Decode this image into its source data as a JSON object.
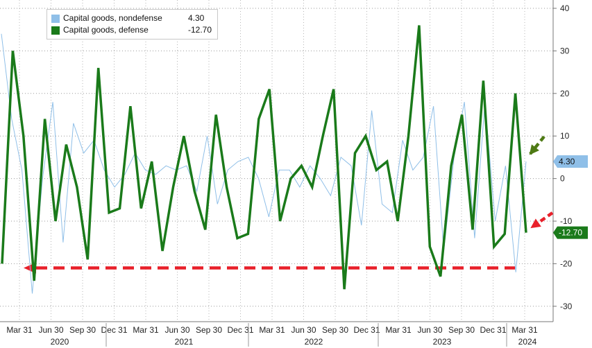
{
  "chart_data": {
    "type": "line",
    "title": "",
    "xlabel": "",
    "ylabel": "",
    "ylim": [
      -33,
      41
    ],
    "y_ticks": [
      40,
      30,
      20,
      10,
      0,
      -10,
      -20,
      -30
    ],
    "x_tick_labels": [
      "Mar 31",
      "Jun 30",
      "Sep 30",
      "Dec 31",
      "Mar 31",
      "Jun 30",
      "Sep 30",
      "Dec 31",
      "Mar 31",
      "Jun 30",
      "Sep 30",
      "Dec 31",
      "Mar 31",
      "Jun 30",
      "Sep 30",
      "Dec 31",
      "Mar 31"
    ],
    "year_labels": [
      "2020",
      "2021",
      "2022",
      "2023",
      "2024"
    ],
    "grid": true,
    "legend_position": "top-left",
    "series": [
      {
        "name": "Capital goods, nondefense",
        "last_value_label": "4.30",
        "color": "#8fbfe8",
        "values": [
          34,
          14,
          2,
          -27,
          0,
          18,
          -15,
          13,
          6,
          9,
          2,
          -2,
          1,
          6,
          2,
          1,
          3,
          2,
          3,
          -3,
          10,
          -6,
          2,
          4,
          5,
          0,
          -9,
          2,
          2,
          -2,
          3,
          0,
          -4,
          5,
          3,
          -11,
          16,
          -6,
          -8,
          9,
          2,
          5,
          17,
          -17,
          5,
          18,
          -14,
          18,
          -10,
          3,
          -22,
          4
        ]
      },
      {
        "name": "Capital goods, defense",
        "last_value_label": "-12.70",
        "color": "#1a7a1a",
        "values": [
          -20,
          30,
          10,
          -24,
          14,
          -10,
          8,
          -2,
          -19,
          26,
          -8,
          -7,
          17,
          -7,
          4,
          -17,
          -2,
          10,
          -3,
          -12,
          15,
          -2,
          -14,
          -13,
          14,
          21,
          -10,
          0,
          3,
          -2,
          10,
          21,
          -26,
          6,
          10,
          2,
          4,
          -10,
          10,
          36,
          -16,
          -23,
          3,
          15,
          -12,
          23,
          -16,
          -13,
          20,
          -12.7
        ]
      }
    ],
    "reference_line_y": -21,
    "reference_line_color": "#e8202a",
    "annotation_arrows": [
      {
        "color": "#4e7a14",
        "points_to": "4.30"
      },
      {
        "color": "#e8202a",
        "points_to": "-12.70"
      }
    ]
  },
  "legend": {
    "nondefense_label": "Capital goods, nondefense",
    "nondefense_value": "4.30",
    "defense_label": "Capital goods, defense",
    "defense_value": "-12.70"
  }
}
